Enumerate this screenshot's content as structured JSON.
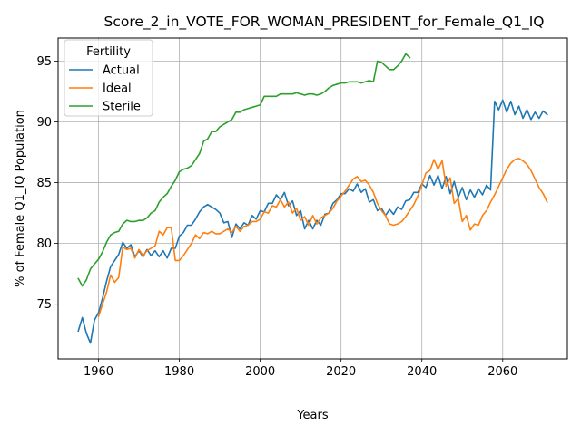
{
  "chart_data": {
    "type": "line",
    "title": "Score_2_in_VOTE_FOR_WOMAN_PRESIDENT_for_Female_Q1_IQ",
    "xlabel": "Years",
    "ylabel": "% of Female Q1_IQ Population",
    "xlim": [
      1950,
      2076
    ],
    "ylim": [
      70.5,
      96.9
    ],
    "xticks": [
      1960,
      1980,
      2000,
      2020,
      2040,
      2060
    ],
    "yticks": [
      75,
      80,
      85,
      90,
      95
    ],
    "grid": true,
    "legend": {
      "title": "Fertility",
      "placement": "top-left"
    },
    "series": [
      {
        "name": "Actual",
        "color": "#1f77b4",
        "points": [
          [
            1955,
            72.8
          ],
          [
            1956,
            73.9
          ],
          [
            1957,
            72.6
          ],
          [
            1958,
            71.8
          ],
          [
            1959,
            73.7
          ],
          [
            1960,
            74.3
          ],
          [
            1961,
            75.5
          ],
          [
            1962,
            76.9
          ],
          [
            1963,
            78.1
          ],
          [
            1964,
            78.6
          ],
          [
            1965,
            79.1
          ],
          [
            1966,
            80.1
          ],
          [
            1967,
            79.6
          ],
          [
            1968,
            79.9
          ],
          [
            1969,
            78.9
          ],
          [
            1970,
            79.4
          ],
          [
            1971,
            78.9
          ],
          [
            1972,
            79.5
          ],
          [
            1973,
            79.0
          ],
          [
            1974,
            79.4
          ],
          [
            1975,
            78.9
          ],
          [
            1976,
            79.4
          ],
          [
            1977,
            78.8
          ],
          [
            1978,
            79.6
          ],
          [
            1979,
            79.6
          ],
          [
            1980,
            80.6
          ],
          [
            1981,
            80.9
          ],
          [
            1982,
            81.5
          ],
          [
            1983,
            81.5
          ],
          [
            1984,
            82.0
          ],
          [
            1985,
            82.6
          ],
          [
            1986,
            83.0
          ],
          [
            1987,
            83.2
          ],
          [
            1988,
            83.0
          ],
          [
            1989,
            82.8
          ],
          [
            1990,
            82.5
          ],
          [
            1991,
            81.7
          ],
          [
            1992,
            81.8
          ],
          [
            1993,
            80.5
          ],
          [
            1994,
            81.6
          ],
          [
            1995,
            81.2
          ],
          [
            1996,
            81.7
          ],
          [
            1997,
            81.5
          ],
          [
            1998,
            82.3
          ],
          [
            1999,
            82.0
          ],
          [
            2000,
            82.7
          ],
          [
            2001,
            82.6
          ],
          [
            2002,
            83.3
          ],
          [
            2003,
            83.3
          ],
          [
            2004,
            84.0
          ],
          [
            2005,
            83.6
          ],
          [
            2006,
            84.2
          ],
          [
            2007,
            83.1
          ],
          [
            2008,
            83.5
          ],
          [
            2009,
            82.3
          ],
          [
            2010,
            82.7
          ],
          [
            2011,
            81.2
          ],
          [
            2012,
            81.9
          ],
          [
            2013,
            81.2
          ],
          [
            2014,
            81.9
          ],
          [
            2015,
            81.5
          ],
          [
            2016,
            82.4
          ],
          [
            2017,
            82.5
          ],
          [
            2018,
            83.3
          ],
          [
            2019,
            83.6
          ],
          [
            2020,
            84.1
          ],
          [
            2021,
            84.1
          ],
          [
            2022,
            84.5
          ],
          [
            2023,
            84.3
          ],
          [
            2024,
            84.9
          ],
          [
            2025,
            84.2
          ],
          [
            2026,
            84.5
          ],
          [
            2027,
            83.4
          ],
          [
            2028,
            83.6
          ],
          [
            2029,
            82.7
          ],
          [
            2030,
            82.9
          ],
          [
            2031,
            82.3
          ],
          [
            2032,
            82.8
          ],
          [
            2033,
            82.4
          ],
          [
            2034,
            83.0
          ],
          [
            2035,
            82.8
          ],
          [
            2036,
            83.5
          ],
          [
            2037,
            83.6
          ],
          [
            2038,
            84.2
          ],
          [
            2039,
            84.2
          ],
          [
            2040,
            84.9
          ],
          [
            2041,
            84.6
          ],
          [
            2042,
            85.6
          ],
          [
            2043,
            84.8
          ],
          [
            2044,
            85.6
          ],
          [
            2045,
            84.5
          ],
          [
            2046,
            85.5
          ],
          [
            2047,
            84.1
          ],
          [
            2048,
            85.1
          ],
          [
            2049,
            83.8
          ],
          [
            2050,
            84.6
          ],
          [
            2051,
            83.6
          ],
          [
            2052,
            84.4
          ],
          [
            2053,
            83.8
          ],
          [
            2054,
            84.5
          ],
          [
            2055,
            84.0
          ],
          [
            2056,
            84.8
          ],
          [
            2057,
            84.4
          ],
          [
            2058,
            91.7
          ],
          [
            2059,
            91.0
          ],
          [
            2060,
            91.8
          ],
          [
            2061,
            90.8
          ],
          [
            2062,
            91.7
          ],
          [
            2063,
            90.6
          ],
          [
            2064,
            91.3
          ],
          [
            2065,
            90.3
          ],
          [
            2066,
            91.0
          ],
          [
            2067,
            90.2
          ],
          [
            2068,
            90.8
          ],
          [
            2069,
            90.3
          ],
          [
            2070,
            90.9
          ],
          [
            2071,
            90.6
          ]
        ]
      },
      {
        "name": "Ideal",
        "color": "#ff7f0e",
        "points": [
          [
            1960,
            74.0
          ],
          [
            1961,
            75.0
          ],
          [
            1962,
            76.0
          ],
          [
            1963,
            77.4
          ],
          [
            1964,
            76.8
          ],
          [
            1965,
            77.2
          ],
          [
            1966,
            79.7
          ],
          [
            1967,
            79.5
          ],
          [
            1968,
            79.6
          ],
          [
            1969,
            78.8
          ],
          [
            1970,
            79.5
          ],
          [
            1971,
            79.0
          ],
          [
            1972,
            79.4
          ],
          [
            1973,
            79.6
          ],
          [
            1974,
            79.8
          ],
          [
            1975,
            81.0
          ],
          [
            1976,
            80.7
          ],
          [
            1977,
            81.3
          ],
          [
            1978,
            81.3
          ],
          [
            1979,
            78.6
          ],
          [
            1980,
            78.6
          ],
          [
            1981,
            79.0
          ],
          [
            1982,
            79.5
          ],
          [
            1983,
            80.0
          ],
          [
            1984,
            80.7
          ],
          [
            1985,
            80.4
          ],
          [
            1986,
            80.9
          ],
          [
            1987,
            80.8
          ],
          [
            1988,
            81.0
          ],
          [
            1989,
            80.8
          ],
          [
            1990,
            80.8
          ],
          [
            1991,
            81.0
          ],
          [
            1992,
            81.2
          ],
          [
            1993,
            80.9
          ],
          [
            1994,
            81.4
          ],
          [
            1995,
            81.0
          ],
          [
            1996,
            81.4
          ],
          [
            1997,
            81.5
          ],
          [
            1998,
            81.8
          ],
          [
            1999,
            81.8
          ],
          [
            2000,
            82.0
          ],
          [
            2001,
            82.6
          ],
          [
            2002,
            82.5
          ],
          [
            2003,
            83.1
          ],
          [
            2004,
            83.0
          ],
          [
            2005,
            83.6
          ],
          [
            2006,
            83.0
          ],
          [
            2007,
            83.4
          ],
          [
            2008,
            82.5
          ],
          [
            2009,
            82.9
          ],
          [
            2010,
            81.9
          ],
          [
            2011,
            82.2
          ],
          [
            2012,
            81.5
          ],
          [
            2013,
            82.3
          ],
          [
            2014,
            81.6
          ],
          [
            2015,
            82.1
          ],
          [
            2016,
            82.3
          ],
          [
            2017,
            82.5
          ],
          [
            2018,
            82.9
          ],
          [
            2019,
            83.5
          ],
          [
            2020,
            83.9
          ],
          [
            2021,
            84.3
          ],
          [
            2022,
            84.8
          ],
          [
            2023,
            85.3
          ],
          [
            2024,
            85.5
          ],
          [
            2025,
            85.1
          ],
          [
            2026,
            85.2
          ],
          [
            2027,
            84.8
          ],
          [
            2028,
            84.2
          ],
          [
            2029,
            83.3
          ],
          [
            2030,
            82.7
          ],
          [
            2031,
            82.3
          ],
          [
            2032,
            81.6
          ],
          [
            2033,
            81.5
          ],
          [
            2034,
            81.6
          ],
          [
            2035,
            81.8
          ],
          [
            2036,
            82.2
          ],
          [
            2037,
            82.7
          ],
          [
            2038,
            83.2
          ],
          [
            2039,
            83.9
          ],
          [
            2040,
            84.8
          ],
          [
            2041,
            85.8
          ],
          [
            2042,
            86.0
          ],
          [
            2043,
            86.9
          ],
          [
            2044,
            86.1
          ],
          [
            2045,
            86.8
          ],
          [
            2046,
            84.7
          ],
          [
            2047,
            85.4
          ],
          [
            2048,
            83.3
          ],
          [
            2049,
            83.7
          ],
          [
            2050,
            81.8
          ],
          [
            2051,
            82.3
          ],
          [
            2052,
            81.1
          ],
          [
            2053,
            81.6
          ],
          [
            2054,
            81.5
          ],
          [
            2055,
            82.3
          ],
          [
            2056,
            82.7
          ],
          [
            2057,
            83.4
          ],
          [
            2058,
            84.0
          ],
          [
            2059,
            84.7
          ],
          [
            2060,
            85.4
          ],
          [
            2061,
            86.1
          ],
          [
            2062,
            86.6
          ],
          [
            2063,
            86.9
          ],
          [
            2064,
            87.0
          ],
          [
            2065,
            86.8
          ],
          [
            2066,
            86.5
          ],
          [
            2067,
            86.0
          ],
          [
            2068,
            85.3
          ],
          [
            2069,
            84.6
          ],
          [
            2070,
            84.1
          ],
          [
            2071,
            83.4
          ]
        ]
      },
      {
        "name": "Sterile",
        "color": "#2ca02c",
        "points": [
          [
            1955,
            77.1
          ],
          [
            1956,
            76.5
          ],
          [
            1957,
            77.0
          ],
          [
            1958,
            77.9
          ],
          [
            1959,
            78.3
          ],
          [
            1960,
            78.7
          ],
          [
            1961,
            79.3
          ],
          [
            1962,
            80.1
          ],
          [
            1963,
            80.7
          ],
          [
            1964,
            80.9
          ],
          [
            1965,
            81.0
          ],
          [
            1966,
            81.6
          ],
          [
            1967,
            81.9
          ],
          [
            1968,
            81.8
          ],
          [
            1969,
            81.8
          ],
          [
            1970,
            81.9
          ],
          [
            1971,
            81.9
          ],
          [
            1972,
            82.1
          ],
          [
            1973,
            82.5
          ],
          [
            1974,
            82.7
          ],
          [
            1975,
            83.4
          ],
          [
            1976,
            83.8
          ],
          [
            1977,
            84.1
          ],
          [
            1978,
            84.7
          ],
          [
            1979,
            85.2
          ],
          [
            1980,
            85.9
          ],
          [
            1981,
            86.1
          ],
          [
            1982,
            86.2
          ],
          [
            1983,
            86.4
          ],
          [
            1984,
            86.9
          ],
          [
            1985,
            87.4
          ],
          [
            1986,
            88.4
          ],
          [
            1987,
            88.6
          ],
          [
            1988,
            89.2
          ],
          [
            1989,
            89.2
          ],
          [
            1990,
            89.6
          ],
          [
            1991,
            89.8
          ],
          [
            1992,
            90.0
          ],
          [
            1993,
            90.2
          ],
          [
            1994,
            90.8
          ],
          [
            1995,
            90.8
          ],
          [
            1996,
            91.0
          ],
          [
            1997,
            91.1
          ],
          [
            1998,
            91.2
          ],
          [
            1999,
            91.3
          ],
          [
            2000,
            91.4
          ],
          [
            2001,
            92.1
          ],
          [
            2002,
            92.1
          ],
          [
            2003,
            92.1
          ],
          [
            2004,
            92.1
          ],
          [
            2005,
            92.3
          ],
          [
            2006,
            92.3
          ],
          [
            2007,
            92.3
          ],
          [
            2008,
            92.3
          ],
          [
            2009,
            92.4
          ],
          [
            2010,
            92.3
          ],
          [
            2011,
            92.2
          ],
          [
            2012,
            92.3
          ],
          [
            2013,
            92.3
          ],
          [
            2014,
            92.2
          ],
          [
            2015,
            92.3
          ],
          [
            2016,
            92.5
          ],
          [
            2017,
            92.8
          ],
          [
            2018,
            93.0
          ],
          [
            2019,
            93.1
          ],
          [
            2020,
            93.2
          ],
          [
            2021,
            93.2
          ],
          [
            2022,
            93.3
          ],
          [
            2023,
            93.3
          ],
          [
            2024,
            93.3
          ],
          [
            2025,
            93.2
          ],
          [
            2026,
            93.3
          ],
          [
            2027,
            93.4
          ],
          [
            2028,
            93.3
          ],
          [
            2029,
            95.0
          ],
          [
            2030,
            94.9
          ],
          [
            2031,
            94.6
          ],
          [
            2032,
            94.3
          ],
          [
            2033,
            94.3
          ],
          [
            2034,
            94.6
          ],
          [
            2035,
            95.0
          ],
          [
            2036,
            95.6
          ],
          [
            2037,
            95.3
          ]
        ]
      }
    ]
  }
}
